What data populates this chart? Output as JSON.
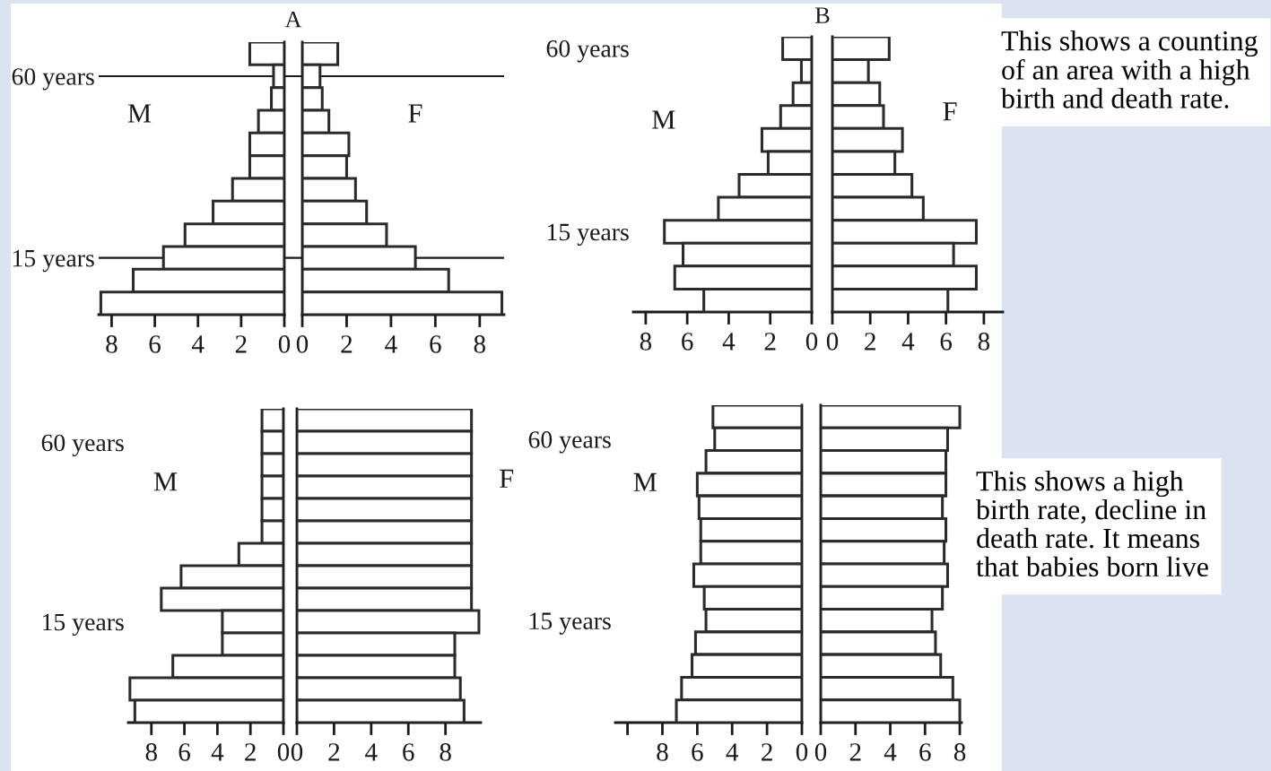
{
  "chart_data": [
    {
      "type": "bar",
      "orientation": "horizontal",
      "title": "A",
      "categories": [
        null,
        "60 years",
        null,
        null,
        null,
        null,
        null,
        null,
        null,
        "15 years",
        null,
        null
      ],
      "series": [
        {
          "name": "M",
          "color": "#ffffff",
          "values": [
            1.6,
            0.5,
            0.6,
            1.2,
            1.6,
            1.6,
            2.4,
            3.3,
            4.6,
            5.6,
            7.0,
            8.5
          ]
        }
      ],
      "xlim": [
        8.6,
        0
      ],
      "xticks": [
        8,
        6,
        4,
        2,
        0
      ],
      "grid": "y"
    },
    {
      "type": "bar",
      "orientation": "horizontal",
      "categories": [
        null,
        null,
        null,
        null,
        null,
        null,
        null,
        null,
        null,
        null,
        null,
        null
      ],
      "series": [
        {
          "name": "F",
          "color": "#ffffff",
          "values": [
            1.6,
            0.8,
            0.9,
            1.2,
            2.1,
            2.0,
            2.4,
            2.9,
            3.8,
            5.1,
            6.6,
            9.0
          ]
        }
      ],
      "xlim": [
        0,
        9.1
      ],
      "xticks": [
        0,
        2,
        4,
        6,
        8
      ],
      "tick_labels": "x"
    },
    {
      "type": "bar",
      "orientation": "horizontal",
      "title": "B",
      "categories": [
        "60 years",
        null,
        null,
        null,
        null,
        null,
        null,
        null,
        "15 years",
        null,
        null,
        null
      ],
      "series": [
        {
          "name": "M",
          "color": "#ffffff",
          "values": [
            1.4,
            0.5,
            0.9,
            1.5,
            2.4,
            2.1,
            3.5,
            4.5,
            7.1,
            6.2,
            6.6,
            5.2
          ]
        }
      ],
      "xlim": [
        8.6,
        0
      ],
      "xticks": [
        8,
        6,
        4,
        2,
        0
      ]
    },
    {
      "type": "bar",
      "orientation": "horizontal",
      "categories": [
        null,
        null,
        null,
        null,
        null,
        null,
        null,
        null,
        null,
        null,
        null,
        null
      ],
      "series": [
        {
          "name": "F",
          "color": "#ffffff",
          "values": [
            3.0,
            1.9,
            2.5,
            2.7,
            3.7,
            3.3,
            4.2,
            4.8,
            7.6,
            6.4,
            7.6,
            6.1
          ]
        }
      ],
      "xlim": [
        0,
        9.0
      ],
      "xticks": [
        0,
        2,
        4,
        6,
        8
      ],
      "tick_labels": "x",
      "annotations": [
        "This shows a counting\nof an area with a high\nbirth and death rate."
      ]
    },
    {
      "type": "bar",
      "orientation": "horizontal",
      "categories": [
        null,
        "60 years",
        null,
        null,
        null,
        null,
        null,
        null,
        null,
        "15 years",
        null,
        null,
        null,
        null
      ],
      "series": [
        {
          "name": "M",
          "color": "#ffffff",
          "values": [
            1.3,
            1.3,
            1.3,
            1.3,
            1.3,
            1.3,
            2.7,
            6.2,
            7.4,
            3.7,
            3.7,
            6.7,
            9.3,
            9.0
          ]
        }
      ],
      "xlim": [
        9.4,
        0
      ],
      "xticks": [
        8,
        6,
        4,
        2,
        0
      ]
    },
    {
      "type": "bar",
      "orientation": "horizontal",
      "categories": [
        null,
        null,
        null,
        null,
        null,
        null,
        null,
        null,
        null,
        null,
        null,
        null,
        null,
        null
      ],
      "series": [
        {
          "name": "F",
          "color": "#ffffff",
          "values": [
            9.4,
            9.4,
            9.4,
            9.4,
            9.4,
            9.4,
            9.4,
            9.4,
            9.4,
            9.8,
            8.5,
            8.5,
            8.8,
            9.0
          ]
        }
      ],
      "xlim": [
        0,
        9.9
      ],
      "xticks": [
        0,
        2,
        4,
        6,
        8
      ],
      "tick_labels": "x"
    },
    {
      "type": "bar",
      "orientation": "horizontal",
      "categories": [
        null,
        "60 years",
        null,
        null,
        null,
        null,
        null,
        null,
        null,
        "15 years",
        null,
        null,
        null,
        null
      ],
      "series": [
        {
          "name": "M",
          "color": "#ffffff",
          "values": [
            5.1,
            5.0,
            5.5,
            6.0,
            5.9,
            5.8,
            5.8,
            6.2,
            5.6,
            5.5,
            6.1,
            6.3,
            6.9,
            7.2
          ]
        }
      ],
      "xlim": [
        10.7,
        0
      ],
      "xticks": [
        {
          "value": 10,
          "label": null
        },
        8,
        6,
        4,
        2,
        0
      ]
    },
    {
      "type": "bar",
      "orientation": "horizontal",
      "categories": [
        null,
        null,
        null,
        null,
        null,
        null,
        null,
        null,
        null,
        null,
        null,
        null,
        null,
        null
      ],
      "series": [
        {
          "color": "#ffffff",
          "values": [
            8.0,
            7.3,
            7.2,
            7.2,
            7.0,
            7.2,
            7.1,
            7.3,
            7.0,
            6.4,
            6.6,
            6.9,
            7.6,
            8.0
          ]
        }
      ],
      "xlim": [
        0,
        8.1
      ],
      "xticks": [
        0,
        2,
        4,
        6,
        8
      ],
      "tick_labels": "x",
      "annotations": [
        "This shows a high\nbirth rate, decline in\ndeath rate. It means\nthat babies born live"
      ]
    }
  ]
}
